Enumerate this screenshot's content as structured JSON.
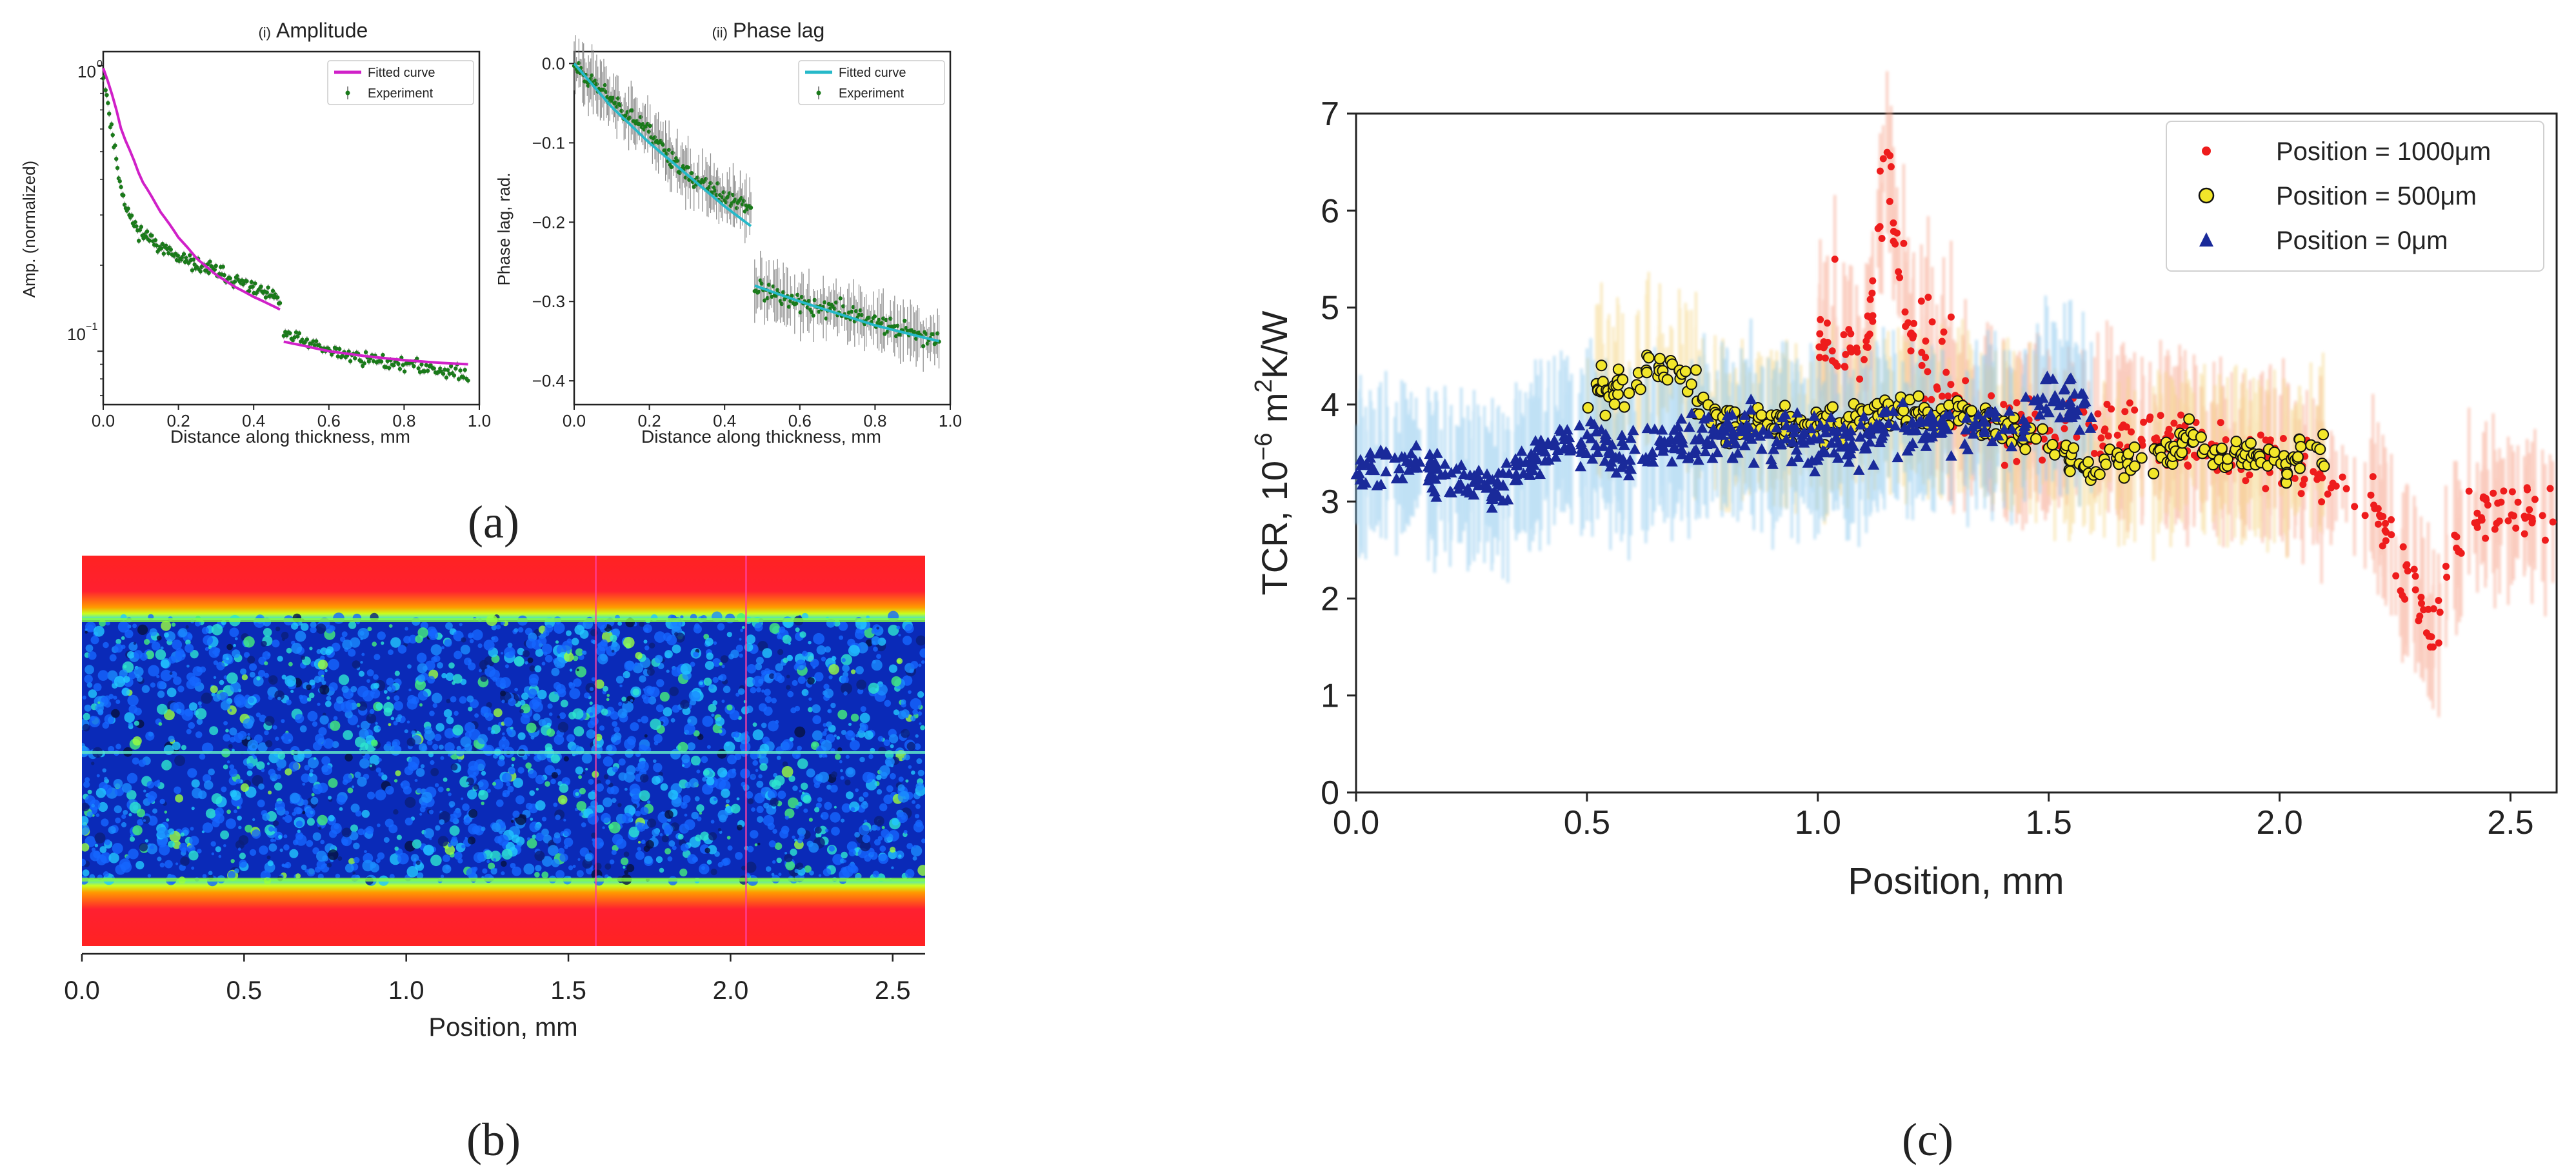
{
  "figure": {
    "panel_labels": [
      "(a)",
      "(b)",
      "(c)"
    ]
  },
  "colors": {
    "magenta": "#d020c8",
    "cyan": "#26b9c9",
    "green": "#1a7a1a",
    "gray": "#8a8a8a",
    "red": "#ee1c1c",
    "yellow": "#f2e62a",
    "navy": "#1a2a9a"
  },
  "chart_data": [
    {
      "id": "a-i",
      "type": "scatter",
      "title_prefix": "(i)",
      "title": "Amplitude",
      "xlabel": "Distance along thickness, mm",
      "ylabel": "Amp. (normalized)",
      "xlim": [
        0,
        1.0
      ],
      "ylim": [
        0.065,
        1.12
      ],
      "yscale": "log",
      "xticks": [
        "0.0",
        "0.2",
        "0.4",
        "0.6",
        "0.8",
        "1.0"
      ],
      "xtick_values": [
        0,
        0.2,
        0.4,
        0.6,
        0.8,
        1.0
      ],
      "ytick_values": [
        1,
        0.1
      ],
      "yticks": [
        "10",
        "10"
      ],
      "ytick_exponents": [
        "0",
        "−1"
      ],
      "legend": [
        "Fitted curve",
        "Experiment"
      ],
      "fitted_curve": {
        "segments": [
          {
            "x": [
              0.0,
              0.05,
              0.1,
              0.15,
              0.2,
              0.25,
              0.3,
              0.35,
              0.4,
              0.47
            ],
            "y": [
              0.98,
              0.58,
              0.4,
              0.31,
              0.25,
              0.21,
              0.185,
              0.168,
              0.155,
              0.14
            ]
          },
          {
            "x": [
              0.48,
              0.6,
              0.7,
              0.8,
              0.9,
              0.97
            ],
            "y": [
              0.108,
              0.1,
              0.096,
              0.093,
              0.091,
              0.09
            ]
          }
        ]
      },
      "experiment": {
        "segments": [
          {
            "x": [
              0.0,
              0.02,
              0.04,
              0.06,
              0.08,
              0.1,
              0.14,
              0.2,
              0.3,
              0.4,
              0.47
            ],
            "y": [
              0.95,
              0.62,
              0.42,
              0.32,
              0.28,
              0.26,
              0.24,
              0.21,
              0.19,
              0.165,
              0.15
            ]
          },
          {
            "x": [
              0.48,
              0.6,
              0.7,
              0.8,
              0.9,
              0.97
            ],
            "y": [
              0.115,
              0.1,
              0.094,
              0.09,
              0.086,
              0.082
            ]
          }
        ]
      }
    },
    {
      "id": "a-ii",
      "type": "scatter",
      "title_prefix": "(ii)",
      "title": "Phase lag",
      "xlabel": "Distance along thickness, mm",
      "ylabel": "Phase lag, rad.",
      "xlim": [
        0,
        1.0
      ],
      "ylim": [
        -0.43,
        0.015
      ],
      "xticks": [
        "0.0",
        "0.2",
        "0.4",
        "0.6",
        "0.8",
        "1.0"
      ],
      "xtick_values": [
        0,
        0.2,
        0.4,
        0.6,
        0.8,
        1.0
      ],
      "yticks": [
        "0.0",
        "−0.1",
        "−0.2",
        "−0.3",
        "−0.4"
      ],
      "ytick_values": [
        0,
        -0.1,
        -0.2,
        -0.3,
        -0.4
      ],
      "legend": [
        "Fitted curve",
        "Experiment"
      ],
      "fitted_curve": {
        "segments": [
          {
            "x": [
              0.0,
              0.1,
              0.2,
              0.3,
              0.4,
              0.47
            ],
            "y": [
              0.0,
              -0.055,
              -0.1,
              -0.14,
              -0.18,
              -0.205
            ]
          },
          {
            "x": [
              0.48,
              0.6,
              0.7,
              0.8,
              0.9,
              0.97
            ],
            "y": [
              -0.28,
              -0.3,
              -0.315,
              -0.33,
              -0.342,
              -0.35
            ]
          }
        ]
      },
      "experiment": {
        "segments": [
          {
            "x": [
              0.0,
              0.1,
              0.2,
              0.3,
              0.4,
              0.47
            ],
            "y": [
              0.0,
              -0.045,
              -0.085,
              -0.14,
              -0.17,
              -0.18
            ]
          },
          {
            "x": [
              0.48,
              0.6,
              0.7,
              0.8,
              0.9,
              0.97
            ],
            "y": [
              -0.28,
              -0.305,
              -0.31,
              -0.325,
              -0.34,
              -0.345
            ]
          }
        ]
      }
    },
    {
      "id": "b",
      "type": "heatmap",
      "xlabel": "Position, mm",
      "xlim": [
        0,
        2.6
      ],
      "xticks": [
        "0.0",
        "0.5",
        "1.0",
        "1.5",
        "2.0",
        "2.5"
      ],
      "xtick_values": [
        0,
        0.5,
        1.0,
        1.5,
        2.0,
        2.5
      ],
      "image_boundaries_mm": [
        1.58,
        2.04
      ]
    },
    {
      "id": "c",
      "type": "scatter",
      "xlabel": "Position, mm",
      "ylabel_parts": [
        "TCR, 10",
        "−6",
        " m",
        "2",
        "K/W"
      ],
      "xlim": [
        0,
        2.6
      ],
      "ylim": [
        0,
        7
      ],
      "xticks": [
        "0.0",
        "0.5",
        "1.0",
        "1.5",
        "2.0",
        "2.5"
      ],
      "xtick_values": [
        0,
        0.5,
        1.0,
        1.5,
        2.0,
        2.5
      ],
      "yticks": [
        "0",
        "1",
        "2",
        "3",
        "4",
        "5",
        "6",
        "7"
      ],
      "ytick_values": [
        0,
        1,
        2,
        3,
        4,
        5,
        6,
        7
      ],
      "legend": [
        "Position = 1000μm",
        "Position = 500μm",
        "Position = 0μm"
      ],
      "series": [
        {
          "name": "Position = 1000μm",
          "marker": "circle",
          "x_range": [
            1.0,
            2.6
          ],
          "x": [
            1.0,
            1.1,
            1.15,
            1.2,
            1.3,
            1.4,
            1.5,
            1.6,
            1.8,
            2.0,
            2.2,
            2.33,
            2.4,
            2.6
          ],
          "y": [
            4.7,
            4.4,
            6.3,
            4.6,
            4.0,
            3.8,
            3.7,
            3.8,
            3.6,
            3.4,
            3.0,
            1.6,
            2.9,
            2.9
          ]
        },
        {
          "name": "Position = 500μm",
          "marker": "circle",
          "x_range": [
            0.5,
            2.1
          ],
          "x": [
            0.5,
            0.6,
            0.65,
            0.7,
            0.8,
            1.0,
            1.2,
            1.4,
            1.6,
            1.8,
            2.0,
            2.1
          ],
          "y": [
            4.1,
            4.2,
            4.4,
            4.3,
            3.8,
            3.8,
            3.9,
            3.8,
            3.3,
            3.6,
            3.4,
            3.5
          ]
        },
        {
          "name": "Position = 0μm",
          "marker": "triangle",
          "x_range": [
            0.0,
            1.6
          ],
          "x": [
            0.0,
            0.1,
            0.2,
            0.3,
            0.4,
            0.5,
            0.6,
            0.8,
            1.0,
            1.2,
            1.4,
            1.5,
            1.6
          ],
          "y": [
            3.2,
            3.4,
            3.3,
            3.1,
            3.5,
            3.6,
            3.5,
            3.7,
            3.6,
            3.7,
            3.8,
            4.1,
            3.9
          ]
        }
      ]
    }
  ]
}
